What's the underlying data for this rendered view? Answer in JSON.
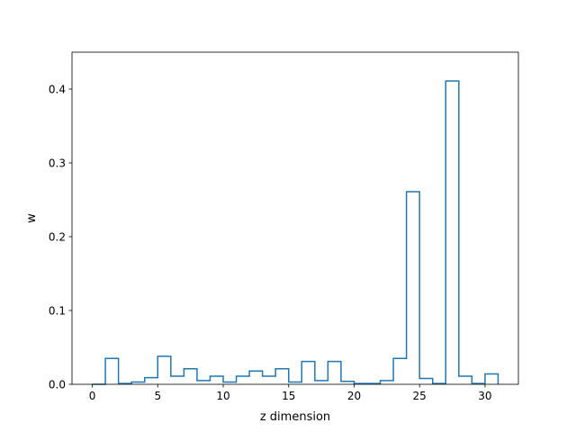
{
  "chart_data": {
    "type": "step-histogram",
    "xlabel": "z dimension",
    "ylabel": "w",
    "xlim": [
      -1.55,
      32.55
    ],
    "ylim": [
      0,
      0.45
    ],
    "xticks": [
      0,
      5,
      10,
      15,
      20,
      25,
      30
    ],
    "yticks": [
      0.0,
      0.1,
      0.2,
      0.3,
      0.4
    ],
    "ytick_labels": [
      "0.0",
      "0.1",
      "0.2",
      "0.3",
      "0.4"
    ],
    "bin_edges": [
      0.0,
      1.0,
      2.0,
      3.0,
      4.0,
      5.0,
      6.0,
      7.0,
      8.0,
      9.0,
      10.0,
      11.0,
      12.0,
      13.0,
      14.0,
      15.0,
      16.0,
      17.0,
      18.0,
      19.0,
      20.0,
      21.0,
      22.0,
      23.0,
      24.0,
      25.0,
      26.0,
      27.0,
      28.0,
      29.0,
      30.0,
      31.0
    ],
    "values": [
      0.0,
      0.035,
      0.001,
      0.003,
      0.009,
      0.038,
      0.011,
      0.021,
      0.005,
      0.011,
      0.003,
      0.011,
      0.018,
      0.011,
      0.021,
      0.003,
      0.031,
      0.005,
      0.031,
      0.004,
      0.001,
      0.001,
      0.005,
      0.035,
      0.261,
      0.008,
      0.001,
      0.411,
      0.011,
      0.001,
      0.014
    ],
    "line_color": "#1f77b4",
    "grid": false
  }
}
